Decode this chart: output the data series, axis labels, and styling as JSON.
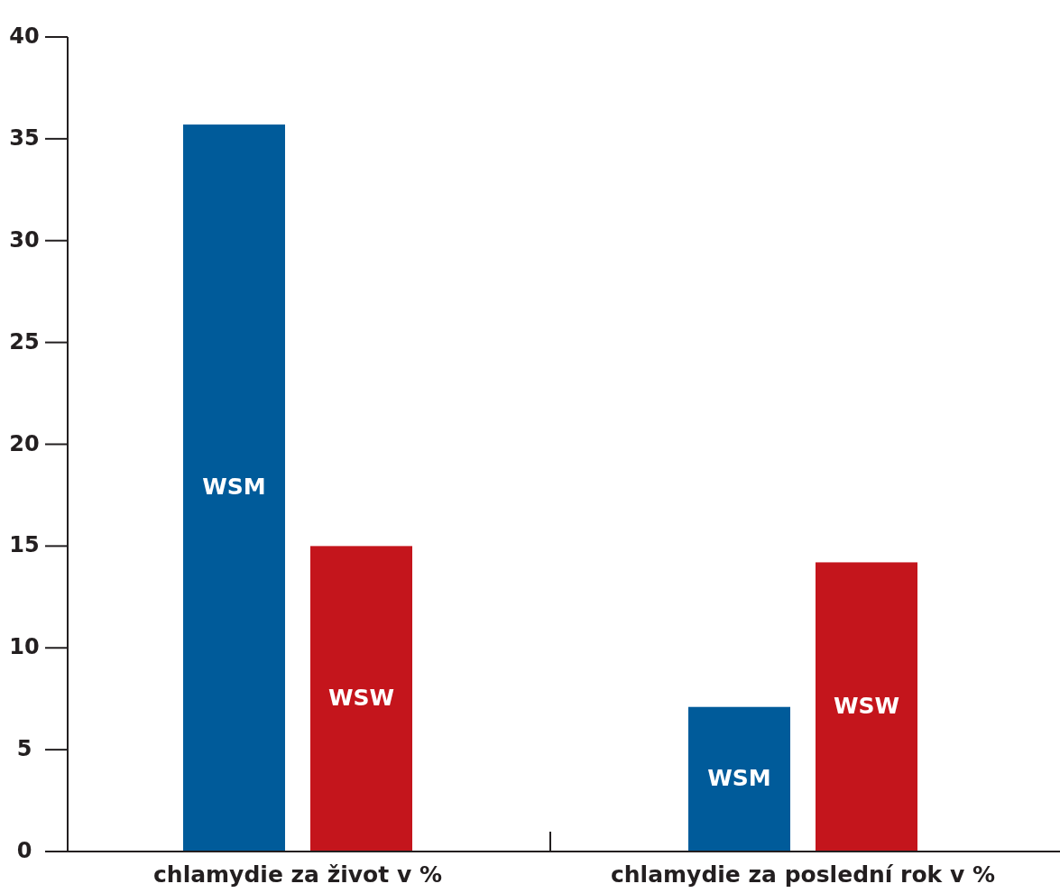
{
  "chart_data": {
    "type": "bar",
    "categories": [
      "chlamydie za život v %",
      "chlamydie za poslední rok v %"
    ],
    "series": [
      {
        "name": "WSM",
        "color": "#005b9a",
        "values": [
          35.7,
          7.1
        ]
      },
      {
        "name": "WSW",
        "color": "#c4151c",
        "values": [
          15.0,
          14.2
        ]
      }
    ],
    "ylim": [
      0,
      40
    ],
    "yticks": [
      0,
      5,
      10,
      15,
      20,
      25,
      30,
      35,
      40
    ],
    "grid": false,
    "legend": false
  }
}
